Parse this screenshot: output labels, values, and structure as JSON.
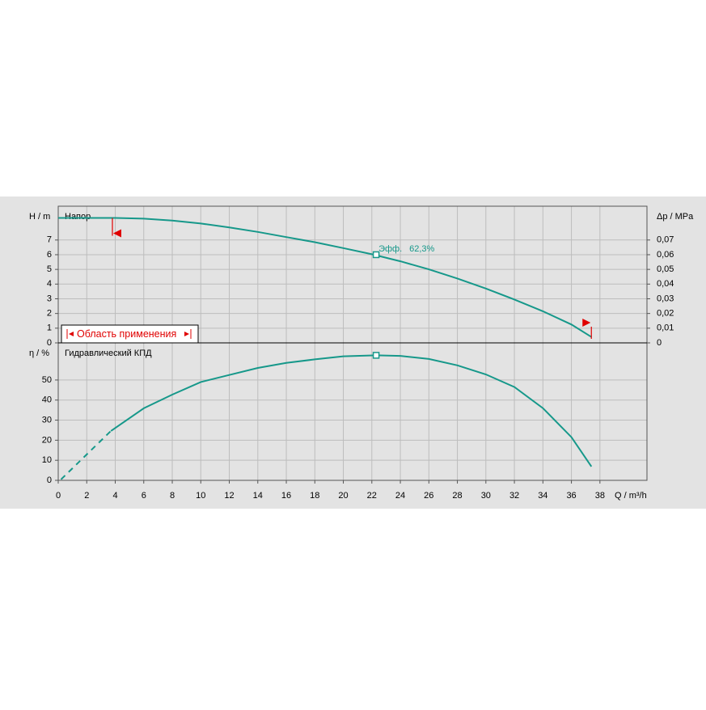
{
  "chart_data": [
    {
      "type": "line",
      "title": "Напор",
      "ylabel": "H / m",
      "y2label": "Δp / MPa",
      "xlim": [
        0,
        41.3
      ],
      "ylim": [
        0,
        9.3
      ],
      "yticks": [
        0,
        1,
        2,
        3,
        4,
        5,
        6,
        7
      ],
      "y2lim": [
        0,
        0.093
      ],
      "y2ticks": [
        0,
        {
          "value": 0.01,
          "label": "0,01"
        },
        {
          "value": 0.02,
          "label": "0,02"
        },
        {
          "value": 0.03,
          "label": "0,03"
        },
        {
          "value": 0.04,
          "label": "0,04"
        },
        {
          "value": 0.05,
          "label": "0,05"
        },
        {
          "value": 0.06,
          "label": "0,06"
        },
        {
          "value": 0.07,
          "label": "0,07"
        }
      ],
      "grid": true,
      "x": [
        0,
        2,
        4,
        6,
        8,
        10,
        12,
        14,
        16,
        18,
        20,
        22,
        24,
        26,
        28,
        30,
        32,
        34,
        36,
        37.4
      ],
      "series": [
        {
          "color": "#16988a",
          "values": [
            8.5,
            8.5,
            8.5,
            8.45,
            8.32,
            8.12,
            7.86,
            7.55,
            7.2,
            6.85,
            6.45,
            6.03,
            5.55,
            5.0,
            4.38,
            3.7,
            2.95,
            2.15,
            1.25,
            0.4
          ]
        }
      ],
      "duty_point": {
        "x": 22.3,
        "y": 6.0,
        "label": "Эфф.",
        "value": 62.3,
        "value_label": "62,3%"
      },
      "range": {
        "label": "Область применения",
        "xmin": 3.8,
        "xmax": 37.4,
        "color": "#e00000"
      }
    },
    {
      "type": "line",
      "title": "Гидравлический КПД",
      "ylabel": "η / %",
      "xlabel": "Q / m³/h",
      "xlim": [
        0,
        41.3
      ],
      "xticks": [
        0,
        2,
        4,
        6,
        8,
        10,
        12,
        14,
        16,
        18,
        20,
        22,
        24,
        26,
        28,
        30,
        32,
        34,
        36,
        38
      ],
      "ylim": [
        0,
        68.5
      ],
      "yticks": [
        0,
        10,
        20,
        30,
        40,
        50
      ],
      "grid": true,
      "x": [
        3.7,
        6,
        8,
        10,
        12,
        14,
        16,
        18,
        20,
        22.3,
        24,
        26,
        28,
        30,
        32,
        34,
        36,
        37.4
      ],
      "series": [
        {
          "color": "#16988a",
          "values": [
            24.6,
            35.9,
            42.7,
            49,
            52.5,
            56,
            58.5,
            60.3,
            61.8,
            62.3,
            62,
            60.5,
            57.3,
            52.8,
            46.5,
            36,
            21.5,
            6.9
          ]
        }
      ],
      "dashed": {
        "x": [
          0.2,
          3.7
        ],
        "values": [
          0.5,
          24.6
        ]
      },
      "duty_point": {
        "x": 22.3,
        "y": 62.3
      }
    }
  ]
}
